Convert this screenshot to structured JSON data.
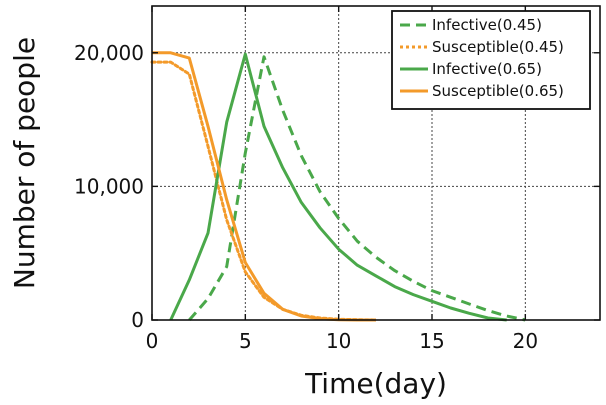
{
  "chart_data": {
    "type": "line",
    "title": "",
    "xlabel": "Time(day)",
    "ylabel": "Number of people",
    "xlim": [
      0,
      24
    ],
    "ylim": [
      0,
      23500
    ],
    "grid": true,
    "legend_position": "top-right",
    "x_ticks": [
      0,
      5,
      10,
      15,
      20
    ],
    "x_tick_labels": [
      "0",
      "5",
      "10",
      "15",
      "20"
    ],
    "y_ticks": [
      0,
      10000,
      20000
    ],
    "y_tick_labels": [
      "0",
      "10,000",
      "20,000"
    ],
    "colors": {
      "infective": "#4aa84a",
      "susceptible": "#f39a2a"
    },
    "series": [
      {
        "name": "Infective(0.45)",
        "style": "dashed",
        "color": "#4aa84a",
        "x": [
          2,
          3,
          4,
          5,
          6,
          7,
          8,
          9,
          10,
          11,
          12,
          13,
          14,
          15,
          16,
          17,
          18,
          19,
          20
        ],
        "y": [
          0,
          1600,
          4000,
          12500,
          19700,
          15700,
          12300,
          9600,
          7600,
          5900,
          4700,
          3700,
          2900,
          2200,
          1700,
          1200,
          700,
          300,
          0
        ]
      },
      {
        "name": "Susceptible(0.45)",
        "style": "dotted",
        "color": "#f39a2a",
        "x": [
          0,
          1,
          2,
          3,
          4,
          5,
          6,
          7,
          8,
          9,
          10,
          11,
          12
        ],
        "y": [
          19300,
          19300,
          18400,
          13000,
          7500,
          3600,
          1700,
          800,
          350,
          150,
          50,
          20,
          0
        ]
      },
      {
        "name": "Infective(0.65)",
        "style": "solid",
        "color": "#4aa84a",
        "x": [
          1,
          2,
          3,
          4,
          5,
          6,
          7,
          8,
          9,
          10,
          11,
          12,
          13,
          14,
          15,
          16,
          17,
          18,
          19
        ],
        "y": [
          0,
          3000,
          6500,
          14800,
          19900,
          14500,
          11400,
          8800,
          6900,
          5300,
          4100,
          3300,
          2500,
          1900,
          1400,
          900,
          500,
          150,
          0
        ]
      },
      {
        "name": "Susceptible(0.65)",
        "style": "solid",
        "color": "#f39a2a",
        "x": [
          0,
          1,
          2,
          3,
          4,
          5,
          6,
          7,
          8,
          9,
          10,
          11,
          12
        ],
        "y": [
          20000,
          20000,
          19600,
          14500,
          9000,
          4300,
          2000,
          800,
          300,
          100,
          20,
          0,
          0
        ]
      }
    ]
  }
}
